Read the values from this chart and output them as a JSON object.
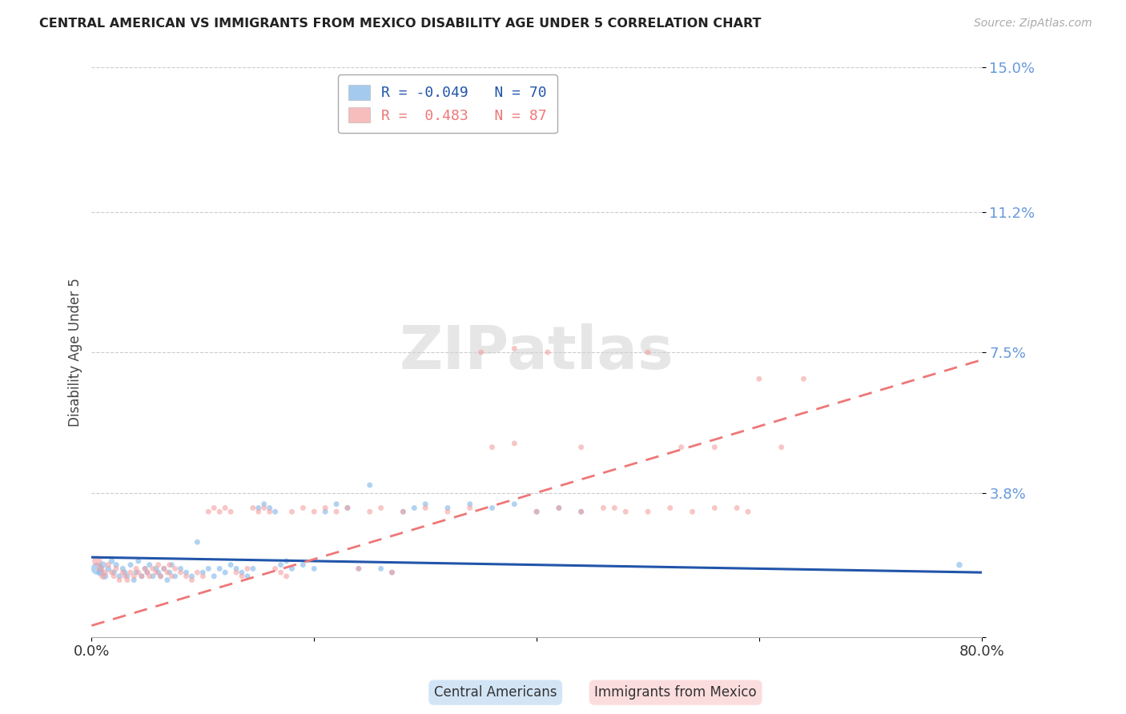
{
  "title": "CENTRAL AMERICAN VS IMMIGRANTS FROM MEXICO DISABILITY AGE UNDER 5 CORRELATION CHART",
  "source": "Source: ZipAtlas.com",
  "ylabel": "Disability Age Under 5",
  "xlim": [
    0.0,
    0.8
  ],
  "ylim": [
    0.0,
    0.15
  ],
  "yticks": [
    0.0,
    0.038,
    0.075,
    0.112,
    0.15
  ],
  "ytick_labels": [
    "",
    "3.8%",
    "7.5%",
    "11.2%",
    "15.0%"
  ],
  "xticks": [
    0.0,
    0.2,
    0.4,
    0.6,
    0.8
  ],
  "xtick_labels": [
    "0.0%",
    "",
    "",
    "",
    "80.0%"
  ],
  "legend_r1": "R = -0.049",
  "legend_n1": "N = 70",
  "legend_r2": "R =  0.483",
  "legend_n2": "N = 87",
  "color_blue": "#7EB6E8",
  "color_pink": "#F4A0A0",
  "color_blue_line": "#2255AA",
  "color_pink_line": "#EE7777",
  "color_axis_labels": "#6699DD",
  "background_color": "#FFFFFF",
  "scatter_blue": {
    "x": [
      0.005,
      0.008,
      0.01,
      0.012,
      0.015,
      0.018,
      0.02,
      0.022,
      0.025,
      0.028,
      0.03,
      0.032,
      0.035,
      0.038,
      0.04,
      0.042,
      0.045,
      0.048,
      0.05,
      0.052,
      0.055,
      0.058,
      0.06,
      0.062,
      0.065,
      0.068,
      0.07,
      0.072,
      0.075,
      0.08,
      0.085,
      0.09,
      0.095,
      0.1,
      0.105,
      0.11,
      0.115,
      0.12,
      0.125,
      0.13,
      0.135,
      0.14,
      0.145,
      0.15,
      0.155,
      0.16,
      0.165,
      0.17,
      0.175,
      0.18,
      0.19,
      0.2,
      0.21,
      0.22,
      0.23,
      0.24,
      0.25,
      0.26,
      0.27,
      0.28,
      0.29,
      0.3,
      0.32,
      0.34,
      0.36,
      0.38,
      0.4,
      0.42,
      0.44,
      0.78
    ],
    "y": [
      0.018,
      0.017,
      0.019,
      0.016,
      0.018,
      0.02,
      0.017,
      0.019,
      0.016,
      0.018,
      0.017,
      0.016,
      0.019,
      0.015,
      0.017,
      0.02,
      0.016,
      0.018,
      0.017,
      0.019,
      0.016,
      0.018,
      0.017,
      0.016,
      0.018,
      0.015,
      0.017,
      0.019,
      0.016,
      0.018,
      0.017,
      0.016,
      0.025,
      0.017,
      0.018,
      0.016,
      0.018,
      0.017,
      0.019,
      0.018,
      0.017,
      0.016,
      0.018,
      0.034,
      0.035,
      0.034,
      0.033,
      0.019,
      0.02,
      0.018,
      0.019,
      0.018,
      0.033,
      0.035,
      0.034,
      0.018,
      0.04,
      0.018,
      0.017,
      0.033,
      0.034,
      0.035,
      0.034,
      0.035,
      0.034,
      0.035,
      0.033,
      0.034,
      0.033,
      0.019
    ],
    "size": [
      120,
      50,
      40,
      35,
      30,
      30,
      28,
      28,
      26,
      26,
      25,
      25,
      25,
      25,
      25,
      25,
      25,
      25,
      25,
      25,
      25,
      25,
      25,
      25,
      25,
      25,
      25,
      25,
      25,
      25,
      25,
      25,
      25,
      25,
      25,
      25,
      25,
      25,
      25,
      25,
      25,
      25,
      25,
      25,
      25,
      25,
      25,
      25,
      25,
      25,
      25,
      25,
      25,
      25,
      25,
      25,
      25,
      25,
      25,
      25,
      25,
      25,
      25,
      25,
      25,
      25,
      25,
      25,
      25,
      30
    ]
  },
  "scatter_pink": {
    "x": [
      0.005,
      0.008,
      0.01,
      0.012,
      0.015,
      0.018,
      0.02,
      0.022,
      0.025,
      0.028,
      0.03,
      0.032,
      0.035,
      0.038,
      0.04,
      0.042,
      0.045,
      0.048,
      0.05,
      0.052,
      0.055,
      0.058,
      0.06,
      0.062,
      0.065,
      0.068,
      0.07,
      0.072,
      0.075,
      0.08,
      0.085,
      0.09,
      0.095,
      0.1,
      0.105,
      0.11,
      0.115,
      0.12,
      0.125,
      0.13,
      0.135,
      0.14,
      0.145,
      0.15,
      0.155,
      0.16,
      0.165,
      0.17,
      0.175,
      0.18,
      0.19,
      0.2,
      0.21,
      0.22,
      0.23,
      0.24,
      0.25,
      0.26,
      0.27,
      0.28,
      0.3,
      0.32,
      0.34,
      0.36,
      0.38,
      0.4,
      0.42,
      0.44,
      0.46,
      0.48,
      0.5,
      0.52,
      0.54,
      0.56,
      0.58,
      0.6,
      0.62,
      0.64,
      0.35,
      0.38,
      0.41,
      0.44,
      0.47,
      0.5,
      0.53,
      0.56,
      0.59
    ],
    "y": [
      0.02,
      0.018,
      0.016,
      0.017,
      0.019,
      0.017,
      0.016,
      0.018,
      0.015,
      0.017,
      0.016,
      0.015,
      0.017,
      0.016,
      0.018,
      0.017,
      0.016,
      0.018,
      0.017,
      0.016,
      0.018,
      0.017,
      0.019,
      0.016,
      0.018,
      0.017,
      0.019,
      0.016,
      0.018,
      0.017,
      0.016,
      0.015,
      0.017,
      0.016,
      0.033,
      0.034,
      0.033,
      0.034,
      0.033,
      0.017,
      0.016,
      0.018,
      0.034,
      0.033,
      0.034,
      0.033,
      0.018,
      0.017,
      0.016,
      0.033,
      0.034,
      0.033,
      0.034,
      0.033,
      0.034,
      0.018,
      0.033,
      0.034,
      0.017,
      0.033,
      0.034,
      0.033,
      0.034,
      0.05,
      0.051,
      0.033,
      0.034,
      0.033,
      0.034,
      0.033,
      0.075,
      0.034,
      0.033,
      0.05,
      0.034,
      0.068,
      0.05,
      0.068,
      0.075,
      0.076,
      0.075,
      0.05,
      0.034,
      0.033,
      0.05,
      0.034,
      0.033
    ],
    "size": [
      80,
      40,
      35,
      30,
      28,
      26,
      25,
      25,
      25,
      25,
      25,
      25,
      25,
      25,
      25,
      25,
      25,
      25,
      25,
      25,
      25,
      25,
      25,
      25,
      25,
      25,
      25,
      25,
      25,
      25,
      25,
      25,
      25,
      25,
      25,
      25,
      25,
      25,
      25,
      25,
      25,
      25,
      25,
      25,
      25,
      25,
      25,
      25,
      25,
      25,
      25,
      25,
      25,
      25,
      25,
      25,
      25,
      25,
      25,
      25,
      25,
      25,
      25,
      25,
      25,
      25,
      25,
      25,
      25,
      25,
      25,
      25,
      25,
      25,
      25,
      25,
      25,
      25,
      25,
      25,
      25,
      25,
      25,
      25,
      25,
      25,
      25
    ]
  },
  "trendline_blue": {
    "x_start": 0.0,
    "x_end": 0.8,
    "y_start": 0.021,
    "y_end": 0.017
  },
  "trendline_pink": {
    "x_start": 0.0,
    "x_end": 0.8,
    "y_start": 0.003,
    "y_end": 0.073
  }
}
